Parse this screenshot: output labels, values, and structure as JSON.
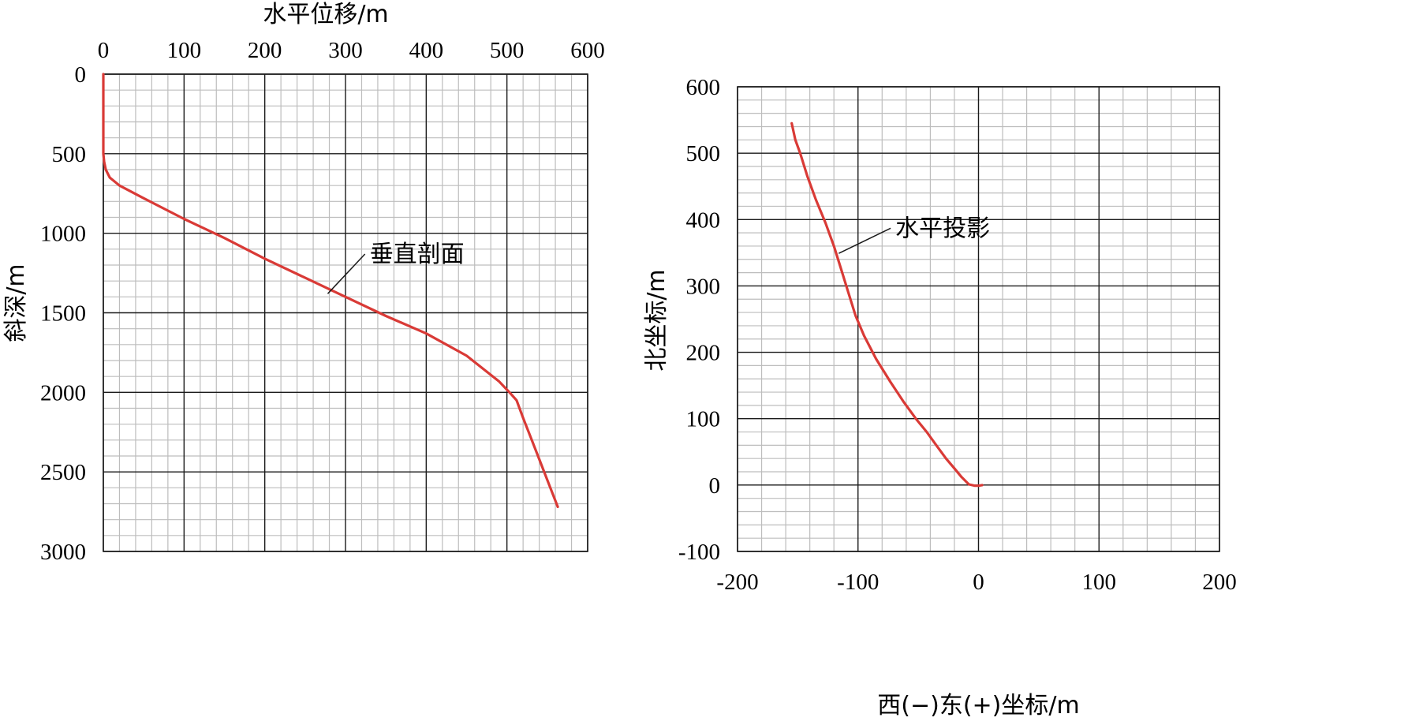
{
  "chart_data": [
    {
      "id": "left",
      "type": "line",
      "xlabel": "水平位移/m",
      "ylabel": "斜深/m",
      "xlim": [
        0,
        600
      ],
      "ylim": [
        0,
        3000
      ],
      "y_inverted": true,
      "x_axis_position": "top",
      "xticks": [
        0,
        100,
        200,
        300,
        400,
        500,
        600
      ],
      "xtick_labels": [
        "0",
        "100",
        "200",
        "300",
        "400",
        "500",
        "600"
      ],
      "yticks": [
        0,
        500,
        1000,
        1500,
        2000,
        2500,
        3000
      ],
      "ytick_labels": [
        "0",
        "500",
        "1000",
        "1500",
        "2000",
        "2500",
        "3000"
      ],
      "x_minor_step": 20,
      "y_minor_step": 100,
      "grid": true,
      "line_color": "#d93a36",
      "series": [
        {
          "name": "垂直剖面",
          "x": [
            0,
            0,
            0,
            0,
            1,
            3,
            8,
            20,
            50,
            100,
            150,
            200,
            250,
            300,
            350,
            400,
            450,
            490,
            505,
            512,
            520,
            530,
            540,
            550,
            563
          ],
          "y": [
            0,
            200,
            400,
            500,
            550,
            600,
            650,
            700,
            780,
            910,
            1030,
            1160,
            1280,
            1400,
            1520,
            1630,
            1770,
            1930,
            2010,
            2050,
            2160,
            2290,
            2420,
            2550,
            2720
          ]
        }
      ],
      "annotations": [
        {
          "text": "垂直剖面",
          "x": 330,
          "y": 1180,
          "points_to_x": 278,
          "points_to_y": 1380
        }
      ]
    },
    {
      "id": "right",
      "type": "line",
      "xlabel": "西(−)东(+)坐标/m",
      "ylabel": "北坐标/m",
      "xlim": [
        -200,
        200
      ],
      "ylim": [
        -100,
        600
      ],
      "x_axis_position": "bottom",
      "xticks": [
        -200,
        -100,
        0,
        100,
        200
      ],
      "xtick_labels": [
        "-200",
        "-100",
        "0",
        "100",
        "200"
      ],
      "yticks": [
        -100,
        0,
        100,
        200,
        300,
        400,
        500,
        600
      ],
      "ytick_labels": [
        "-100",
        "0",
        "100",
        "200",
        "300",
        "400",
        "500",
        "600"
      ],
      "x_minor_step": 20,
      "y_minor_step": 20,
      "grid": true,
      "line_color": "#d93a36",
      "series": [
        {
          "name": "水平投影",
          "x": [
            3,
            0,
            -3,
            -8,
            -14,
            -20,
            -27,
            -35,
            -43,
            -52,
            -62,
            -73,
            -85,
            -95,
            -102,
            -108,
            -114,
            -120,
            -127,
            -135,
            -142,
            -148,
            -152,
            -155
          ],
          "y": [
            0,
            -1,
            -1,
            1,
            12,
            25,
            40,
            60,
            80,
            100,
            125,
            155,
            190,
            225,
            255,
            290,
            325,
            360,
            395,
            430,
            465,
            500,
            520,
            545
          ]
        }
      ],
      "annotations": [
        {
          "text": "水平投影",
          "x": -69,
          "y": 375,
          "points_to_x": -116,
          "points_to_y": 349
        }
      ]
    }
  ]
}
